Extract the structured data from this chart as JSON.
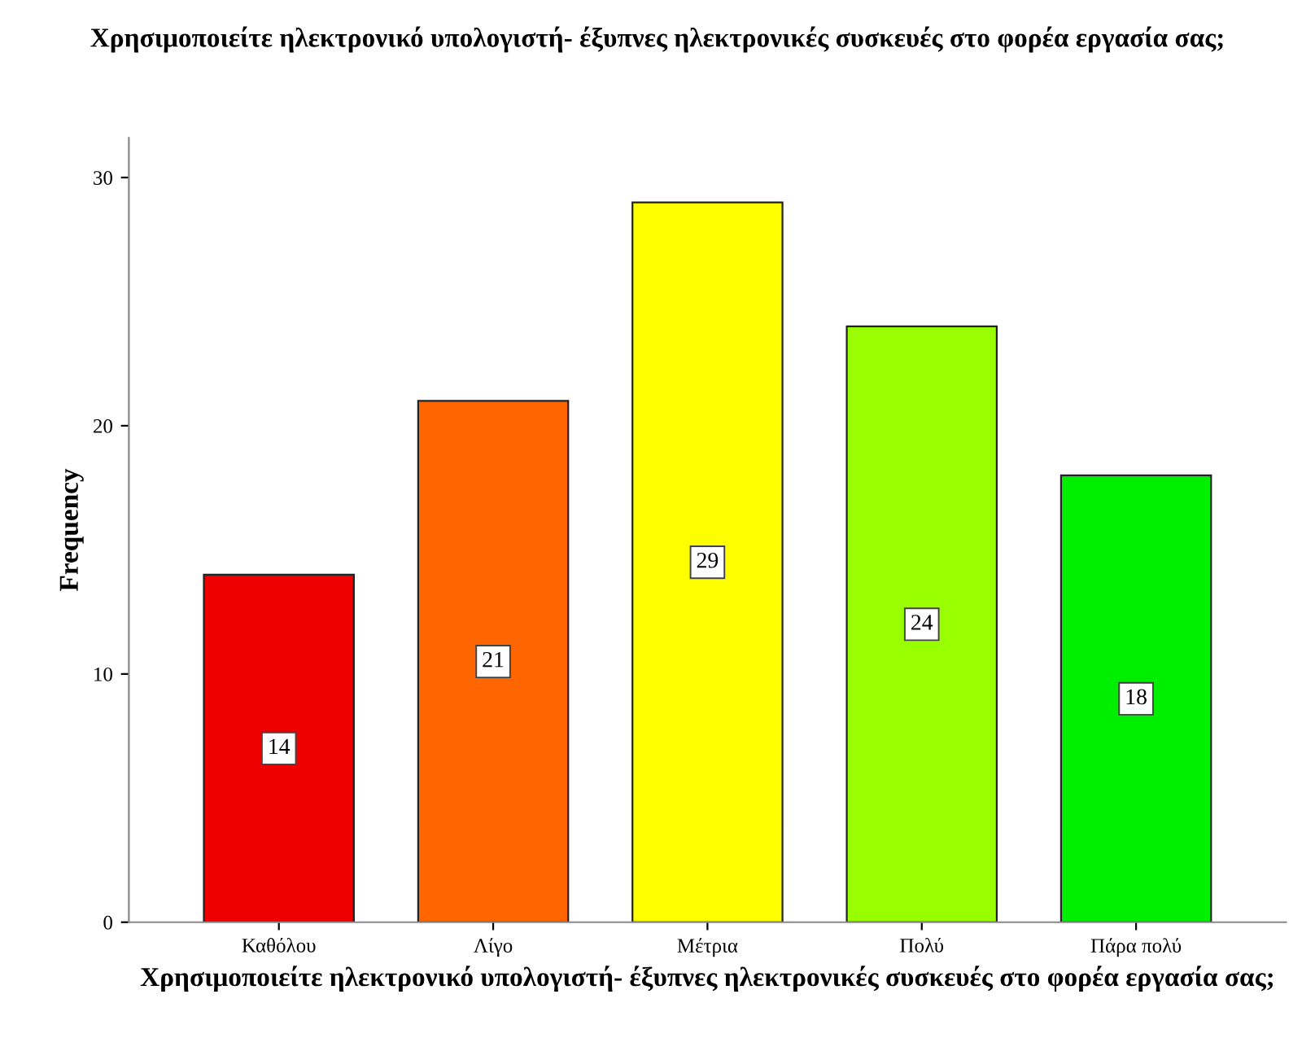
{
  "chart_data": {
    "type": "bar",
    "title": "Χρησιμοποιείτε ηλεκτρονικό υπολογιστή- έξυπνες ηλεκτρονικές συσκευές στο φορέα εργασία σας;",
    "xlabel": "Χρησιμοποιείτε ηλεκτρονικό υπολογιστή- έξυπνες ηλεκτρονικές συσκευές στο φορέα εργασία σας;",
    "ylabel": "Frequency",
    "categories": [
      "Καθόλου",
      "Λίγο",
      "Μέτρια",
      "Πολύ",
      "Πάρα πολύ"
    ],
    "values": [
      14,
      21,
      29,
      24,
      18
    ],
    "colors": [
      "#ee0000",
      "#ff6600",
      "#ffff00",
      "#99ff00",
      "#00ee00"
    ],
    "ylim": [
      0,
      31.6
    ],
    "yticks": [
      0,
      10,
      20,
      30
    ],
    "grid": false,
    "data_labels": true
  }
}
